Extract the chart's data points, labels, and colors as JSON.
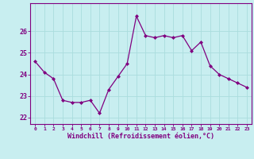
{
  "x": [
    0,
    1,
    2,
    3,
    4,
    5,
    6,
    7,
    8,
    9,
    10,
    11,
    12,
    13,
    14,
    15,
    16,
    17,
    18,
    19,
    20,
    21,
    22,
    23
  ],
  "y": [
    24.6,
    24.1,
    23.8,
    22.8,
    22.7,
    22.7,
    22.8,
    22.2,
    23.3,
    23.9,
    24.5,
    26.7,
    25.8,
    25.7,
    25.8,
    25.7,
    25.8,
    25.1,
    25.5,
    24.4,
    24.0,
    23.8,
    23.6,
    23.4
  ],
  "line_color": "#800080",
  "marker": "D",
  "marker_size": 2.0,
  "bg_color": "#c8eef0",
  "grid_color": "#aadddd",
  "xlabel": "Windchill (Refroidissement éolien,°C)",
  "xlabel_color": "#800080",
  "tick_color": "#800080",
  "ylabel_ticks": [
    22,
    23,
    24,
    25,
    26
  ],
  "xlim": [
    -0.5,
    23.5
  ],
  "ylim": [
    21.7,
    27.3
  ],
  "xtick_labels": [
    "0",
    "1",
    "2",
    "3",
    "4",
    "5",
    "6",
    "7",
    "8",
    "9",
    "10",
    "11",
    "12",
    "13",
    "14",
    "15",
    "16",
    "17",
    "18",
    "19",
    "20",
    "21",
    "22",
    "23"
  ]
}
